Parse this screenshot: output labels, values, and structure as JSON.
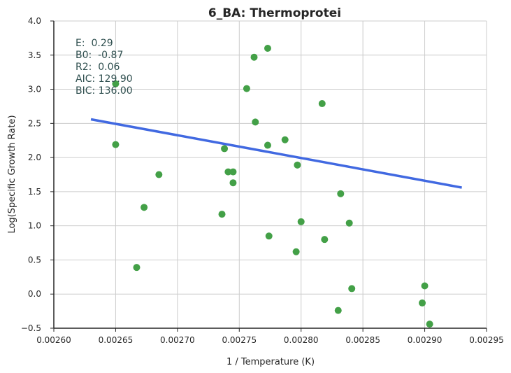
{
  "chart_data": {
    "type": "scatter",
    "title": "6_BA: Thermoprotei",
    "xlabel": "1 / Temperature (K)",
    "ylabel": "Log(Specific Growth Rate)",
    "xlim": [
      0.0026,
      0.00295
    ],
    "ylim": [
      -0.5,
      4.0
    ],
    "x_ticks": [
      "0.00260",
      "0.00265",
      "0.00270",
      "0.00275",
      "0.00280",
      "0.00285",
      "0.00290",
      "0.00295"
    ],
    "y_ticks": [
      "4.0",
      "3.5",
      "3.0",
      "2.5",
      "2.0",
      "1.5",
      "1.0",
      "0.5",
      "0.0",
      "−0.5"
    ],
    "x_tick_values": [
      0.0026,
      0.00265,
      0.0027,
      0.00275,
      0.0028,
      0.00285,
      0.0029,
      0.00295
    ],
    "y_tick_values": [
      4.0,
      3.5,
      3.0,
      2.5,
      2.0,
      1.5,
      1.0,
      0.5,
      0.0,
      -0.5
    ],
    "grid": true,
    "series": [
      {
        "type": "scatter",
        "color": "#43a047",
        "points": [
          [
            0.00265,
            3.08
          ],
          [
            0.00265,
            2.19
          ],
          [
            0.002667,
            0.39
          ],
          [
            0.002673,
            1.27
          ],
          [
            0.002685,
            1.75
          ],
          [
            0.002736,
            1.17
          ],
          [
            0.002738,
            2.13
          ],
          [
            0.002741,
            1.79
          ],
          [
            0.002745,
            1.79
          ],
          [
            0.002745,
            1.63
          ],
          [
            0.002756,
            3.01
          ],
          [
            0.002762,
            3.47
          ],
          [
            0.002763,
            2.52
          ],
          [
            0.002773,
            3.6
          ],
          [
            0.002773,
            2.18
          ],
          [
            0.002774,
            0.85
          ],
          [
            0.002787,
            2.26
          ],
          [
            0.002796,
            0.62
          ],
          [
            0.002797,
            1.89
          ],
          [
            0.0028,
            1.06
          ],
          [
            0.002817,
            2.79
          ],
          [
            0.002819,
            0.8
          ],
          [
            0.00283,
            -0.24
          ],
          [
            0.002832,
            1.47
          ],
          [
            0.002839,
            1.04
          ],
          [
            0.002841,
            0.08
          ],
          [
            0.002898,
            -0.13
          ],
          [
            0.0029,
            0.12
          ],
          [
            0.002904,
            -0.44
          ]
        ]
      },
      {
        "type": "line",
        "color": "#4169e1",
        "points": [
          [
            0.00263,
            2.56
          ],
          [
            0.00293,
            1.56
          ]
        ]
      }
    ],
    "annotations": [
      "E:  0.29",
      "B0:  -0.87",
      "R2:  0.06",
      "AIC: 129.90",
      "BIC: 136.00"
    ]
  }
}
